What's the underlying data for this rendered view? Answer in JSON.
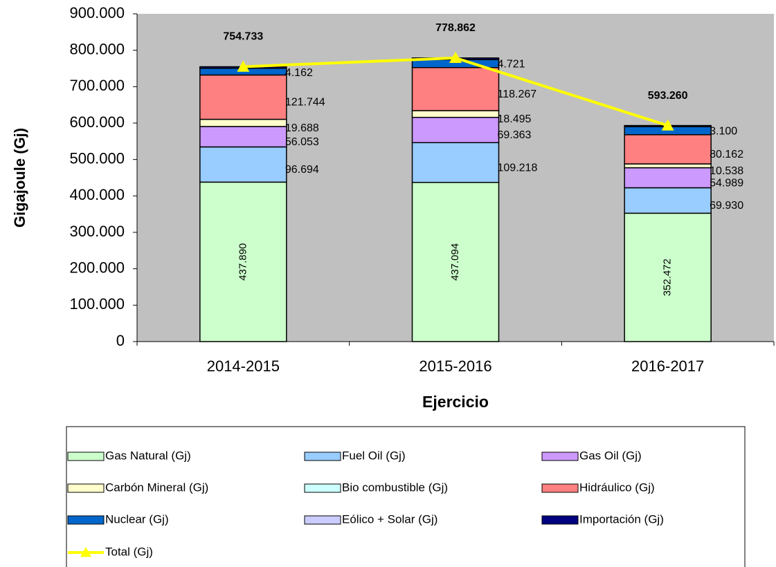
{
  "chart_data": {
    "type": "stacked_bar_line",
    "ylabel": "Gigajoule (Gj)",
    "xlabel": "Ejercicio",
    "categories": [
      "2014-2015",
      "2015-2016",
      "2016-2017"
    ],
    "ylim": [
      0,
      900000
    ],
    "yticks": [
      0,
      {
        "value": 100000,
        "label": "100.000"
      },
      {
        "value": 200000,
        "label": "200.000"
      },
      {
        "value": 300000,
        "label": "300.000"
      },
      {
        "value": 400000,
        "label": "400.000"
      },
      {
        "value": 500000,
        "label": "500.000"
      },
      {
        "value": 600000,
        "label": "600.000"
      },
      {
        "value": 700000,
        "label": "700.000"
      },
      {
        "value": 800000,
        "label": "800.000"
      },
      {
        "value": 900000,
        "label": "900.000"
      }
    ],
    "series": [
      {
        "name": "Gas Natural (Gj)",
        "color": "#ccffcc",
        "values": [
          437890,
          437094,
          352472
        ],
        "value_labels": [
          "437.890",
          "437.094",
          "352.472"
        ]
      },
      {
        "name": "Fuel Oil (Gj)",
        "color": "#99ccff",
        "values": [
          96694,
          109218,
          69930
        ],
        "value_labels": [
          "96.694",
          "109.218",
          "69.930"
        ]
      },
      {
        "name": "Gas Oil (Gj)",
        "color": "#cc99ff",
        "values": [
          56053,
          69363,
          54989
        ],
        "value_labels": [
          "56.053",
          "69.363",
          "54.989"
        ]
      },
      {
        "name": "Carbón Mineral (Gj)",
        "color": "#ffffcc",
        "values": [
          19688,
          18495,
          10538
        ],
        "value_labels": [
          "19.688",
          "18.495",
          "10.538"
        ]
      },
      {
        "name": "Bio combustible (Gj)",
        "color": "#ccffff",
        "values": [
          0,
          0,
          0
        ]
      },
      {
        "name": "Hidráulico (Gj)",
        "color": "#ff8080",
        "values": [
          121744,
          118267,
          80162
        ],
        "value_labels": [
          "121.744",
          "118.267",
          "80.162"
        ]
      },
      {
        "name": "Nuclear (Gj)",
        "color": "#0066cc",
        "values": [
          18502,
          21704,
          22069
        ]
      },
      {
        "name": "Eólico + Solar (Gj)",
        "color": "#ccccff",
        "values": [
          0,
          0,
          0
        ]
      },
      {
        "name": "Importación (Gj)",
        "color": "#000080",
        "values": [
          4162,
          4721,
          3100
        ],
        "value_labels": [
          "4.162",
          "4.721",
          "3.100"
        ]
      }
    ],
    "total": {
      "name": "Total (Gj)",
      "color": "#ffff00",
      "values": [
        754733,
        778862,
        593260
      ],
      "value_labels": [
        "754.733",
        "778.862",
        "593.260"
      ]
    }
  }
}
